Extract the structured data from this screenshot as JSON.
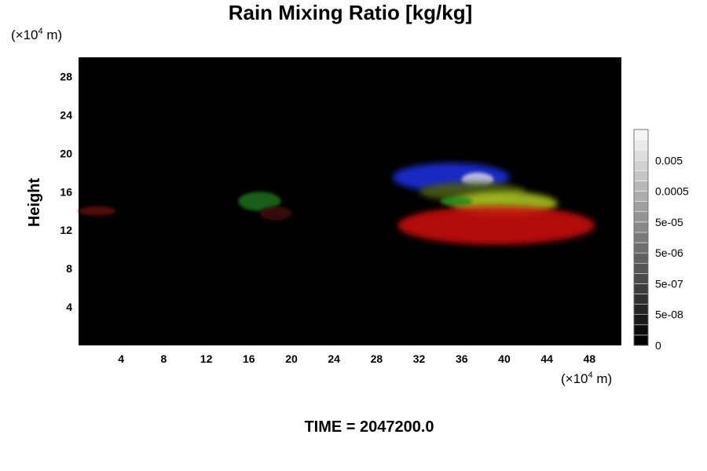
{
  "chart_data": {
    "type": "heatmap",
    "title": "Rain Mixing Ratio [kg/kg]",
    "ylabel": "Height",
    "xlabel": "",
    "x_unit": {
      "prefix": "(×10",
      "exp": "4",
      "suffix": " m)"
    },
    "y_unit": {
      "prefix": "(×10",
      "exp": "4",
      "suffix": " m)"
    },
    "xlim": [
      0,
      51
    ],
    "ylim": [
      0,
      30
    ],
    "x_ticks": [
      4,
      8,
      12,
      16,
      20,
      24,
      28,
      32,
      36,
      40,
      44,
      48
    ],
    "y_ticks": [
      4,
      8,
      12,
      16,
      20,
      24,
      28
    ],
    "grid": false,
    "background": "#000000",
    "colorbar": {
      "levels": 21,
      "labels": [
        {
          "text": "0.005",
          "value": 0.005
        },
        {
          "text": "0.0005",
          "value": 0.0005
        },
        {
          "text": "5e-05",
          "value": 5e-05
        },
        {
          "text": "5e-06",
          "value": 5e-06
        },
        {
          "text": "5e-07",
          "value": 5e-07
        },
        {
          "text": "5e-08",
          "value": 5e-08
        },
        {
          "text": "0",
          "value": 0
        }
      ]
    },
    "features": [
      {
        "color": "#1e2fd8",
        "x": [
          29.5,
          40.5
        ],
        "y": [
          16.0,
          19.0
        ]
      },
      {
        "color": "#c8c8e6",
        "x": [
          36.0,
          39.0
        ],
        "y": [
          16.5,
          18.0
        ]
      },
      {
        "color": "#4a5a10",
        "x": [
          32.0,
          42.0
        ],
        "y": [
          15.0,
          17.0
        ]
      },
      {
        "color": "#a8c020",
        "x": [
          35.0,
          45.0
        ],
        "y": [
          13.5,
          16.0
        ]
      },
      {
        "color": "#2a8a1a",
        "x": [
          34.0,
          37.0
        ],
        "y": [
          14.5,
          15.5
        ]
      },
      {
        "color": "#c81010",
        "x": [
          30.0,
          48.5
        ],
        "y": [
          10.5,
          14.5
        ]
      },
      {
        "color": "#1a6a1a",
        "x": [
          15.0,
          19.0
        ],
        "y": [
          14.0,
          16.0
        ]
      },
      {
        "color": "#5a1010",
        "x": [
          0.0,
          3.5
        ],
        "y": [
          13.5,
          14.5
        ]
      },
      {
        "color": "#3a0a0a",
        "x": [
          17.0,
          20.0
        ],
        "y": [
          13.0,
          14.5
        ]
      }
    ]
  },
  "footer": {
    "time_label": "TIME = 2047200.0"
  }
}
